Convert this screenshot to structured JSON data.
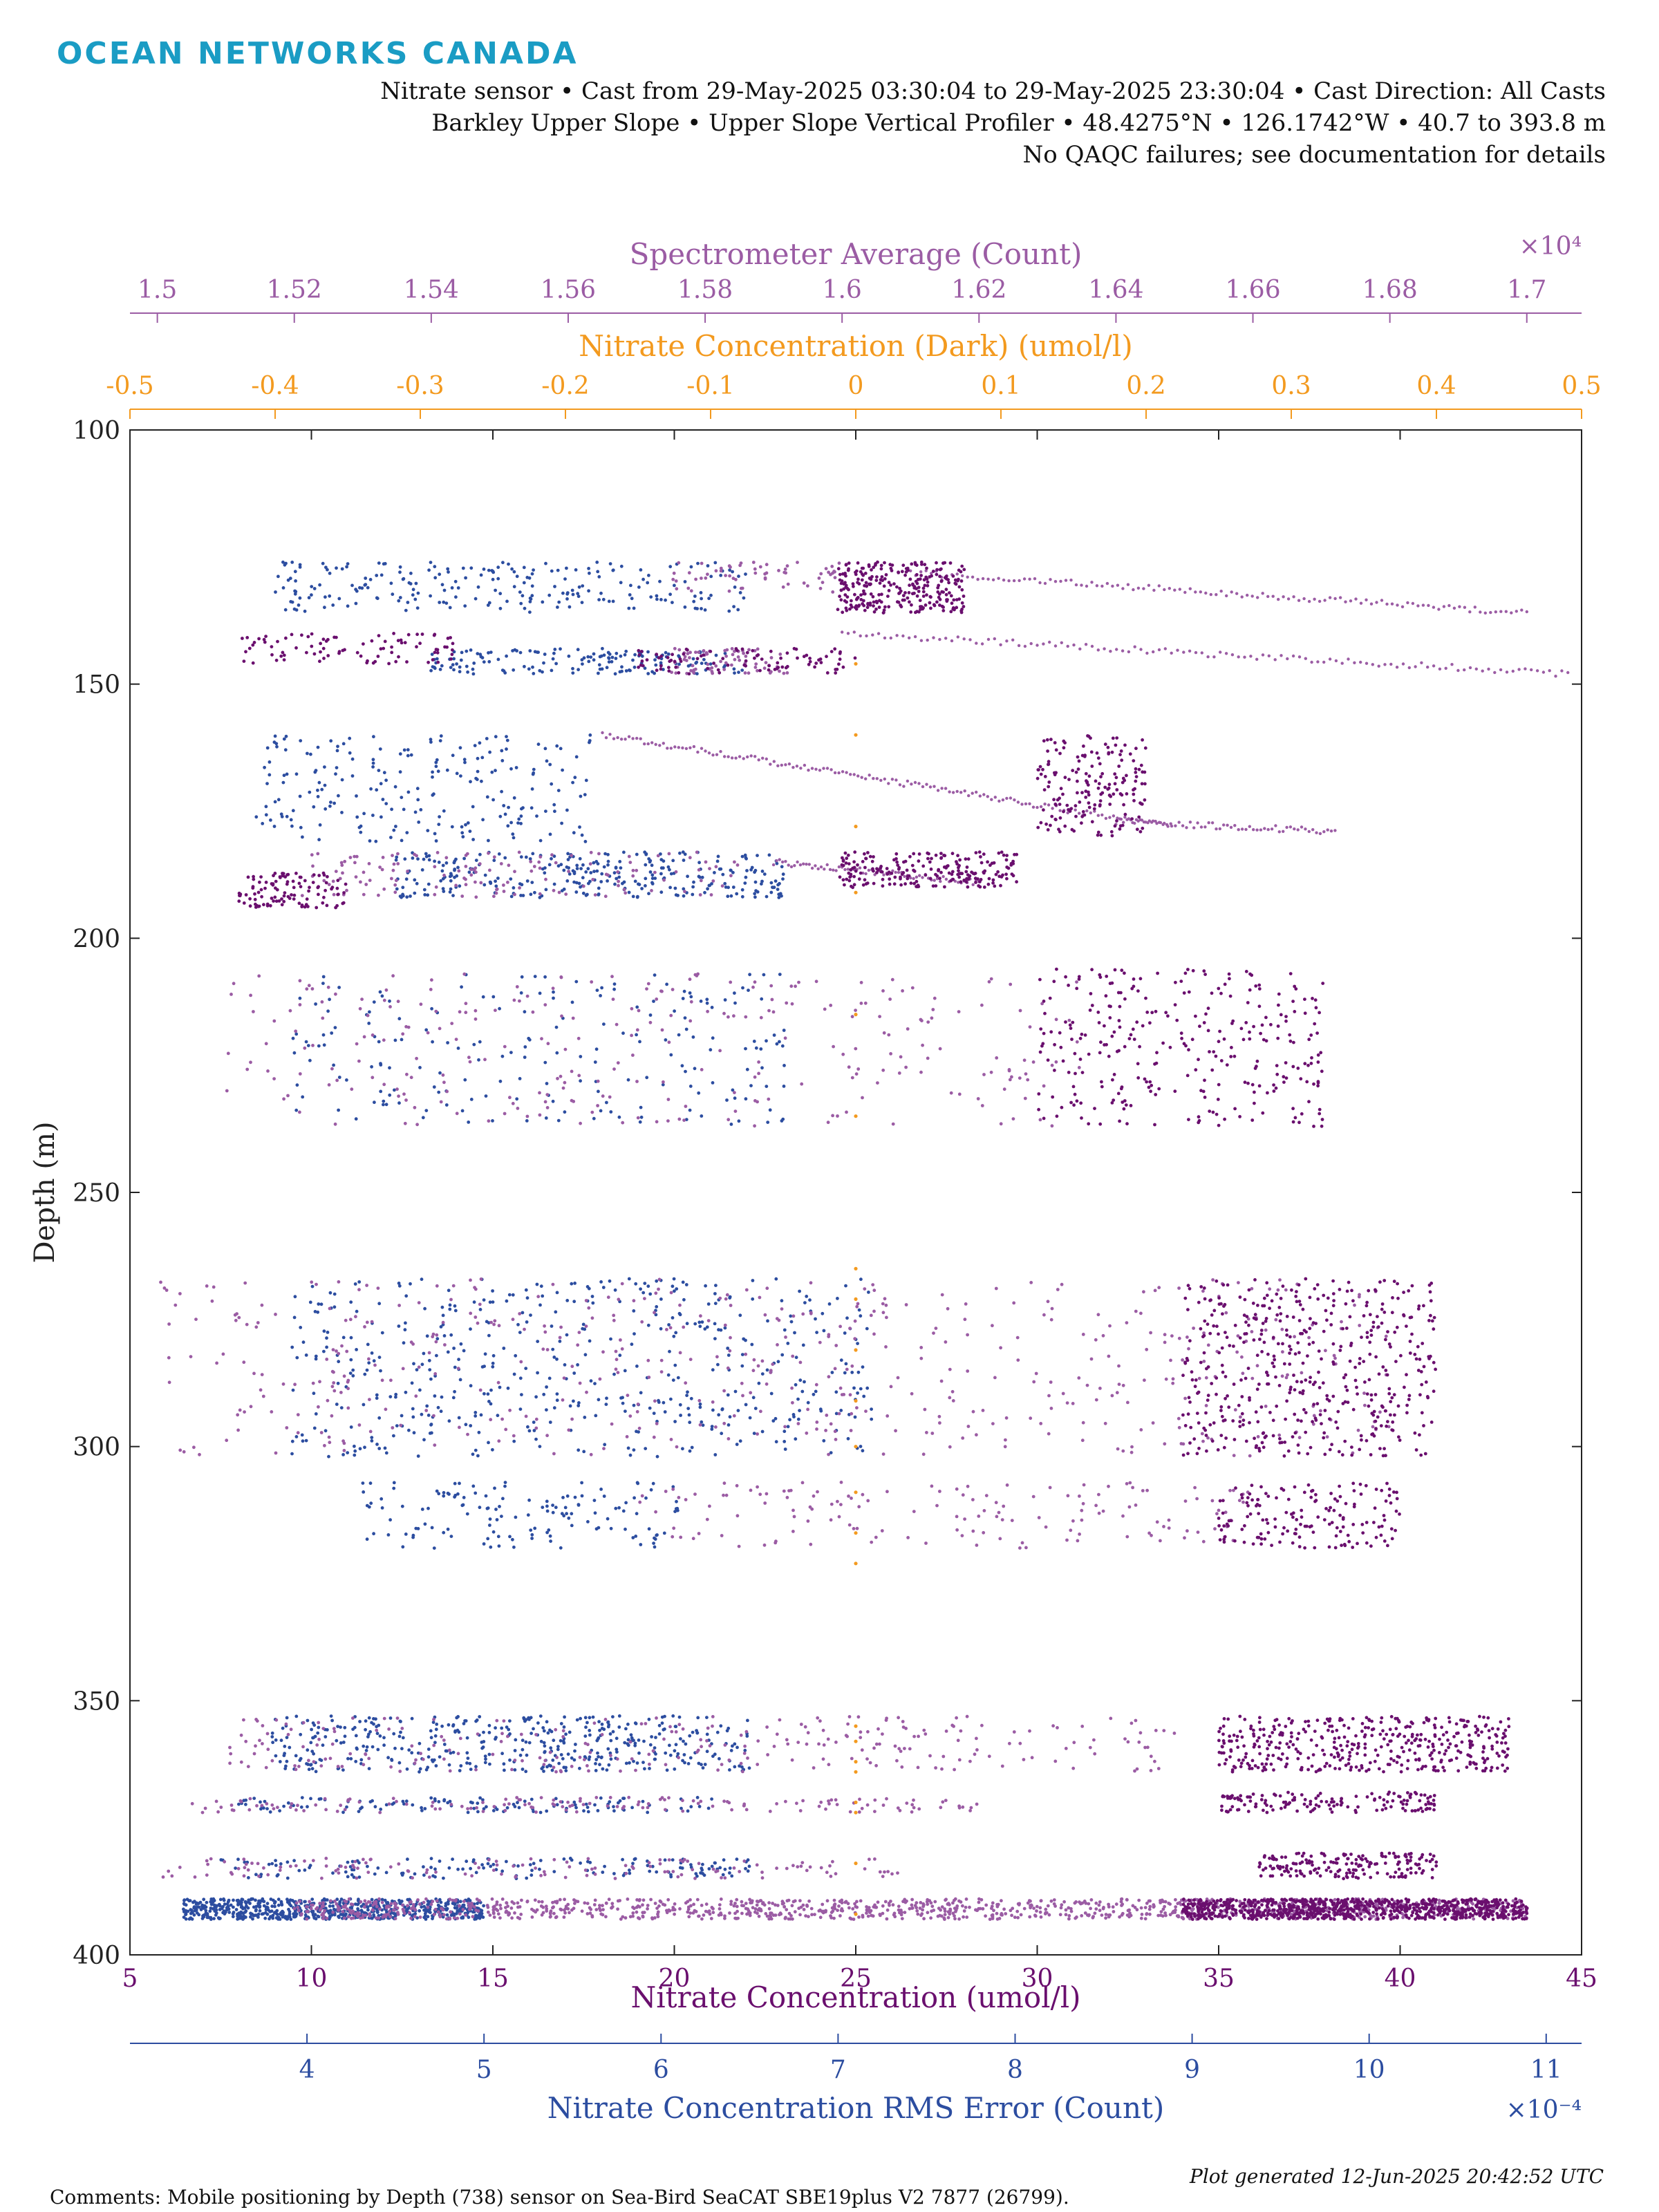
{
  "header": {
    "logo": "OCEAN NETWORKS CANADA",
    "line1": "Nitrate sensor • Cast from 29-May-2025 03:30:04 to 29-May-2025 23:30:04 • Cast Direction: All Casts",
    "line2": "Barkley Upper Slope • Upper Slope Vertical Profiler • 48.4275°N • 126.1742°W • 40.7 to 393.8 m",
    "line3": "No QAQC failures; see documentation for details"
  },
  "footer": {
    "comments": "Comments: Mobile positioning by Depth (738) sensor on Sea-Bird SeaCAT SBE19plus V2 7877 (26799).",
    "generated": "Plot generated 12-Jun-2025 20:42:52 UTC"
  },
  "colors": {
    "nitrate": "#6a0f6e",
    "spectrometer": "#9b5ca4",
    "dark": "#f39a1f",
    "rms": "#2c4da0"
  },
  "chart_data": {
    "type": "scatter",
    "y_axis": {
      "label": "Depth (m)",
      "range": [
        100,
        400
      ],
      "reversed": true,
      "ticks": [
        100,
        150,
        200,
        250,
        300,
        350,
        400
      ]
    },
    "x_axes": [
      {
        "key": "nitrate",
        "label": "Nitrate Concentration (umol/l)",
        "position": "bottom",
        "range": [
          5,
          45
        ],
        "ticks": [
          5,
          10,
          15,
          20,
          25,
          30,
          35,
          40,
          45
        ]
      },
      {
        "key": "rms",
        "label": "Nitrate Concentration RMS Error (Count)",
        "position": "bottom-secondary",
        "range": [
          3.0,
          11.2
        ],
        "ticks": [
          4,
          5,
          6,
          7,
          8,
          9,
          10,
          11
        ],
        "exponent_label": "×10⁻⁴"
      },
      {
        "key": "dark",
        "label": "Nitrate Concentration (Dark) (umol/l)",
        "position": "top-secondary",
        "range": [
          -0.5,
          0.5
        ],
        "ticks": [
          -0.5,
          -0.4,
          -0.3,
          -0.2,
          -0.1,
          0,
          0.1,
          0.2,
          0.3,
          0.4,
          0.5
        ]
      },
      {
        "key": "spectrometer",
        "label": "Spectrometer Average (Count)",
        "position": "top",
        "range": [
          1.496,
          1.708
        ],
        "ticks": [
          1.5,
          1.52,
          1.54,
          1.56,
          1.58,
          1.6,
          1.62,
          1.64,
          1.66,
          1.68,
          1.7
        ],
        "exponent_label": "×10⁴"
      }
    ],
    "series": [
      {
        "name": "Nitrate Concentration (umol/l)",
        "axis": "nitrate",
        "clusters": [
          {
            "depth": [
              126,
              136
            ],
            "x": [
              24.5,
              28.0
            ],
            "n": 280
          },
          {
            "depth": [
              140,
              146
            ],
            "x": [
              8.0,
              14.0
            ],
            "n": 90
          },
          {
            "depth": [
              143,
              148
            ],
            "x": [
              19.0,
              25.0
            ],
            "n": 90
          },
          {
            "depth": [
              160,
              180
            ],
            "x": [
              30.0,
              33.0
            ],
            "n": 180
          },
          {
            "depth": [
              183,
              190
            ],
            "x": [
              24.5,
              29.5
            ],
            "n": 210
          },
          {
            "depth": [
              187,
              194
            ],
            "x": [
              8.0,
              11.0
            ],
            "n": 110
          },
          {
            "depth": [
              206,
              237
            ],
            "x": [
              30.0,
              38.0
            ],
            "n": 300
          },
          {
            "depth": [
              267,
              302
            ],
            "x": [
              34.0,
              41.0
            ],
            "n": 480
          },
          {
            "depth": [
              307,
              320
            ],
            "x": [
              35.0,
              40.0
            ],
            "n": 160
          },
          {
            "depth": [
              353,
              364
            ],
            "x": [
              35.0,
              43.0
            ],
            "n": 420
          },
          {
            "depth": [
              368,
              372
            ],
            "x": [
              35.0,
              41.0
            ],
            "n": 150
          },
          {
            "depth": [
              380,
              385
            ],
            "x": [
              36.0,
              41.0
            ],
            "n": 180
          },
          {
            "depth": [
              389,
              393
            ],
            "x": [
              34.0,
              43.5
            ],
            "n": 900
          }
        ]
      },
      {
        "name": "Spectrometer Average (Count)",
        "axis": "spectrometer",
        "clusters": [
          {
            "depth": [
              126,
              132
            ],
            "x": [
              1.575,
              1.6
            ],
            "n": 60
          },
          {
            "depth": [
              143,
              148
            ],
            "x": [
              1.575,
              1.592
            ],
            "n": 70
          },
          {
            "depth": [
              183,
              192
            ],
            "x": [
              1.52,
              1.585
            ],
            "n": 140
          },
          {
            "depth": [
              207,
              237
            ],
            "x": [
              1.51,
              1.635
            ],
            "n": 280
          },
          {
            "depth": [
              267,
              302
            ],
            "x": [
              1.5,
              1.68
            ],
            "n": 520
          },
          {
            "depth": [
              307,
              320
            ],
            "x": [
              1.57,
              1.66
            ],
            "n": 150
          },
          {
            "depth": [
              353,
              364
            ],
            "x": [
              1.51,
              1.65
            ],
            "n": 260
          },
          {
            "depth": [
              369,
              372
            ],
            "x": [
              1.505,
              1.62
            ],
            "n": 150
          },
          {
            "depth": [
              381,
              385
            ],
            "x": [
              1.5,
              1.61
            ],
            "n": 140
          },
          {
            "depth": [
              389,
              393
            ],
            "x": [
              1.52,
              1.7
            ],
            "n": 1200
          }
        ],
        "lines": [
          {
            "depth": [
              128,
              136
            ],
            "x": [
              1.61,
              1.7
            ],
            "n": 120
          },
          {
            "depth": [
              140,
              148
            ],
            "x": [
              1.6,
              1.706
            ],
            "n": 120
          },
          {
            "depth": [
              160,
              178
            ],
            "x": [
              1.565,
              1.648
            ],
            "n": 150
          },
          {
            "depth": [
              177,
              179
            ],
            "x": [
              1.64,
              1.672
            ],
            "n": 60
          },
          {
            "depth": [
              185,
              189
            ],
            "x": [
              1.59,
              1.62
            ],
            "n": 70
          }
        ]
      },
      {
        "name": "Nitrate Concentration RMS Error (Count)",
        "axis": "rms",
        "clusters": [
          {
            "depth": [
              126,
              136
            ],
            "x": [
              3.8,
              6.5
            ],
            "n": 230
          },
          {
            "depth": [
              143,
              148
            ],
            "x": [
              4.7,
              6.5
            ],
            "n": 160
          },
          {
            "depth": [
              160,
              181
            ],
            "x": [
              3.7,
              5.6
            ],
            "n": 220
          },
          {
            "depth": [
              183,
              192
            ],
            "x": [
              4.5,
              6.7
            ],
            "n": 300
          },
          {
            "depth": [
              207,
              237
            ],
            "x": [
              3.9,
              6.7
            ],
            "n": 200
          },
          {
            "depth": [
              267,
              302
            ],
            "x": [
              3.9,
              7.2
            ],
            "n": 500
          },
          {
            "depth": [
              307,
              320
            ],
            "x": [
              4.3,
              6.1
            ],
            "n": 140
          },
          {
            "depth": [
              353,
              364
            ],
            "x": [
              3.8,
              6.5
            ],
            "n": 420
          },
          {
            "depth": [
              369,
              372
            ],
            "x": [
              3.6,
              6.3
            ],
            "n": 120
          },
          {
            "depth": [
              381,
              385
            ],
            "x": [
              3.5,
              6.5
            ],
            "n": 150
          },
          {
            "depth": [
              389,
              393
            ],
            "x": [
              3.3,
              5.0
            ],
            "n": 700
          }
        ]
      },
      {
        "name": "Nitrate Concentration (Dark) (umol/l)",
        "axis": "dark",
        "points": [
          [
            0.0,
            146
          ],
          [
            0.0,
            160
          ],
          [
            0.0,
            178
          ],
          [
            0.0,
            191
          ],
          [
            0.0,
            215
          ],
          [
            0.0,
            235
          ],
          [
            0.0,
            265
          ],
          [
            0.0,
            271
          ],
          [
            0.0,
            281
          ],
          [
            0.0,
            291
          ],
          [
            0.0,
            300
          ],
          [
            0.0,
            309
          ],
          [
            0.0,
            317
          ],
          [
            0.0,
            323
          ],
          [
            0.0,
            355
          ],
          [
            0.0,
            358
          ],
          [
            0.0,
            362
          ],
          [
            0.0,
            364
          ],
          [
            0.0,
            370
          ],
          [
            0.0,
            372
          ],
          [
            0.0,
            382
          ],
          [
            0.0,
            392
          ]
        ]
      }
    ]
  }
}
